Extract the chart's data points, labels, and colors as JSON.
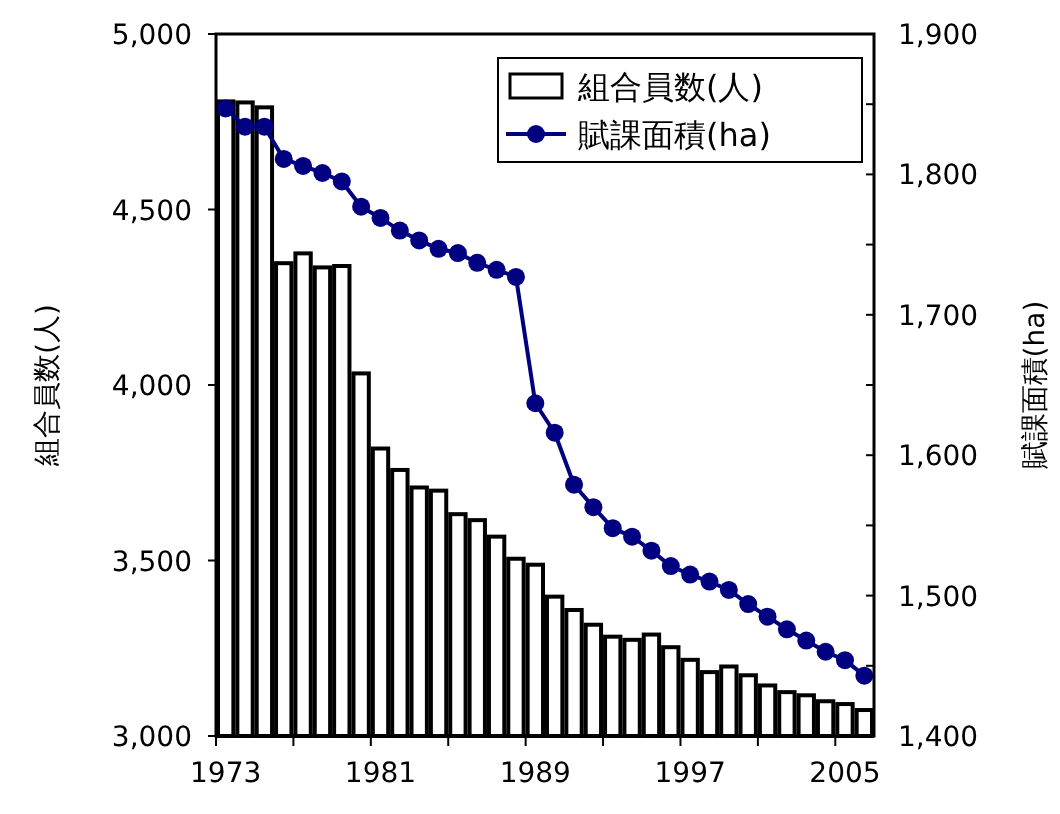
{
  "chart_data": {
    "type": "bar",
    "xlabel": null,
    "ylabel": "組合員数(人)",
    "y2label": "賦課面積(ha)",
    "categories": [
      "1973",
      null,
      null,
      null,
      null,
      null,
      null,
      null,
      "1981",
      null,
      null,
      null,
      null,
      null,
      null,
      null,
      "1989",
      null,
      null,
      null,
      null,
      null,
      null,
      null,
      "1997",
      null,
      null,
      null,
      null,
      null,
      null,
      null,
      "2005",
      null
    ],
    "series": [
      {
        "name": "組合員数(人)",
        "color": "#ffffff",
        "values": [
          4808,
          4805,
          4791,
          4347,
          4375,
          4335,
          4339,
          4033,
          3819,
          3758,
          3708,
          3699,
          3632,
          3615,
          3568,
          3505,
          3488,
          3397,
          3359,
          3317,
          3283,
          3274,
          3289,
          3253,
          3217,
          3182,
          3198,
          3173,
          3144,
          3125,
          3116,
          3099,
          3091,
          3074
        ]
      },
      {
        "name": "賦課面積(ha)",
        "type": "line",
        "axis": "y2",
        "color": "#000080",
        "marker": "circle",
        "values": [
          1847,
          1834,
          1834,
          1811,
          1806,
          1801,
          1795,
          1777,
          1769,
          1760,
          1753,
          1747,
          1744,
          1737,
          1732,
          1727,
          1637,
          1616,
          1579,
          1563,
          1548,
          1542,
          1532,
          1521,
          1515,
          1510,
          1504,
          1494,
          1485,
          1476,
          1468,
          1460,
          1454,
          1443
        ]
      }
    ],
    "ylim": [
      3000,
      5000
    ],
    "yticks": [
      {
        "value": 3000,
        "label": "3,000"
      },
      {
        "value": 3500,
        "label": "3,500"
      },
      {
        "value": 4000,
        "label": "4,000"
      },
      {
        "value": 4500,
        "label": "4,500"
      },
      {
        "value": 5000,
        "label": "5,000"
      }
    ],
    "y2lim": [
      1400,
      1900
    ],
    "y2ticks": [
      {
        "value": 1400,
        "label": "1,400"
      },
      {
        "value": 1450,
        "label": null
      },
      {
        "value": 1500,
        "label": "1,500"
      },
      {
        "value": 1550,
        "label": null
      },
      {
        "value": 1600,
        "label": "1,600"
      },
      {
        "value": 1650,
        "label": null
      },
      {
        "value": 1700,
        "label": "1,700"
      },
      {
        "value": 1750,
        "label": null
      },
      {
        "value": 1800,
        "label": "1,800"
      },
      {
        "value": 1850,
        "label": null
      },
      {
        "value": 1900,
        "label": "1,900"
      }
    ],
    "grid": false,
    "legend": "top right"
  }
}
